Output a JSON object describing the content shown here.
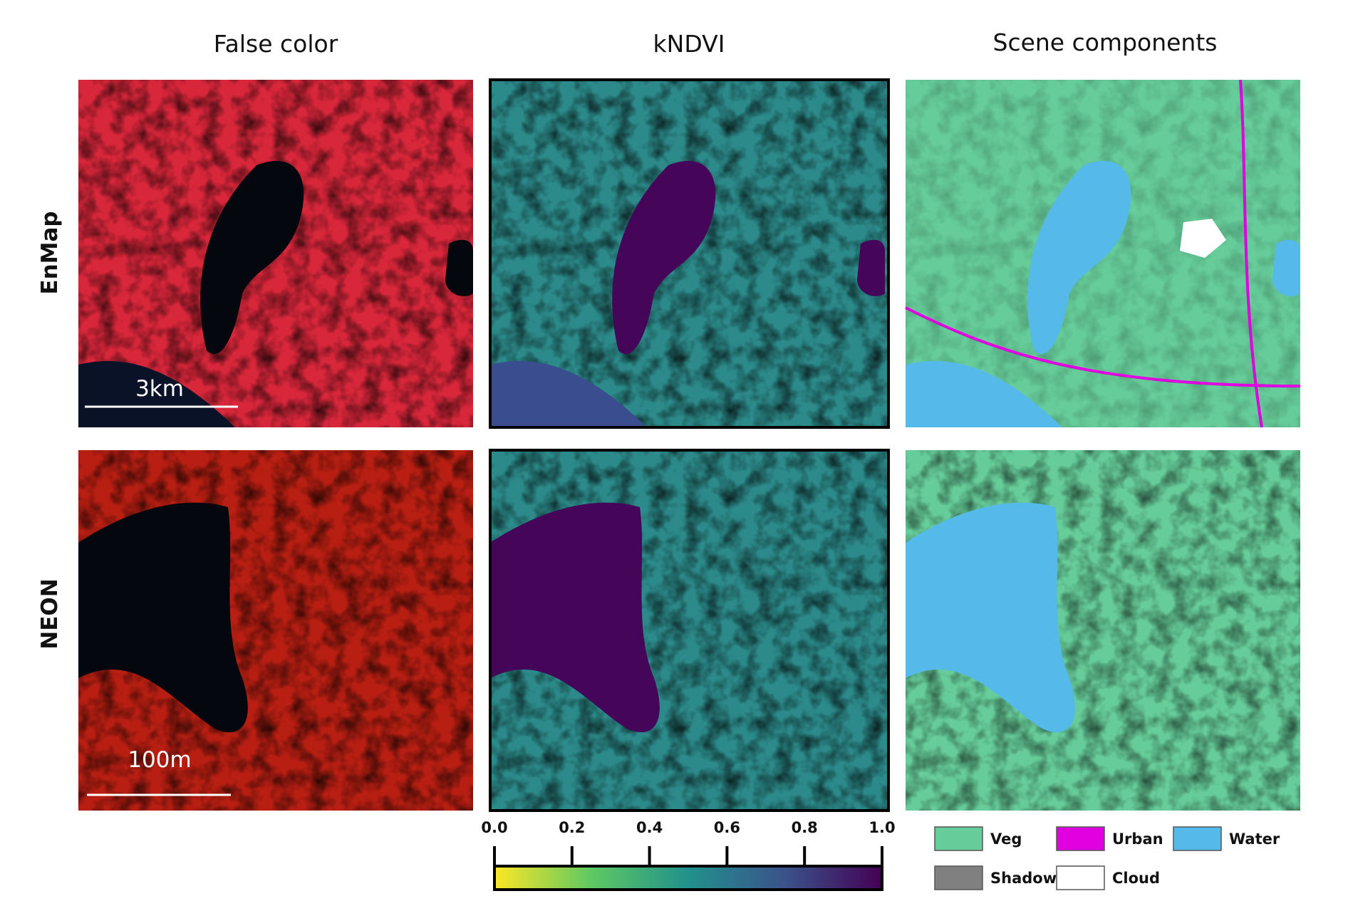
{
  "columns": [
    "False color",
    "kNDVI",
    "Scene components"
  ],
  "rows": [
    "EnMap",
    "NEON"
  ],
  "scale_bars": [
    "3km",
    "100m"
  ],
  "colorbar": {
    "lim": [
      0,
      1
    ],
    "ticks": [
      {
        "value": 0,
        "label": "0.0"
      },
      {
        "value": 0.2,
        "label": "0.2"
      },
      {
        "value": 0.4,
        "label": "0.4"
      },
      {
        "value": 0.6,
        "label": "0.6"
      },
      {
        "value": 0.8,
        "label": "0.8"
      },
      {
        "value": 1,
        "label": "1.0"
      }
    ]
  },
  "legend": [
    {
      "name": "Veg",
      "color": "#66cc99"
    },
    {
      "name": "Urban",
      "color": "#e000e0"
    },
    {
      "name": "Water",
      "color": "#55b9ea"
    },
    {
      "name": "Shadow",
      "color": "#808080"
    },
    {
      "name": "Cloud",
      "color": "#ffffff"
    }
  ]
}
